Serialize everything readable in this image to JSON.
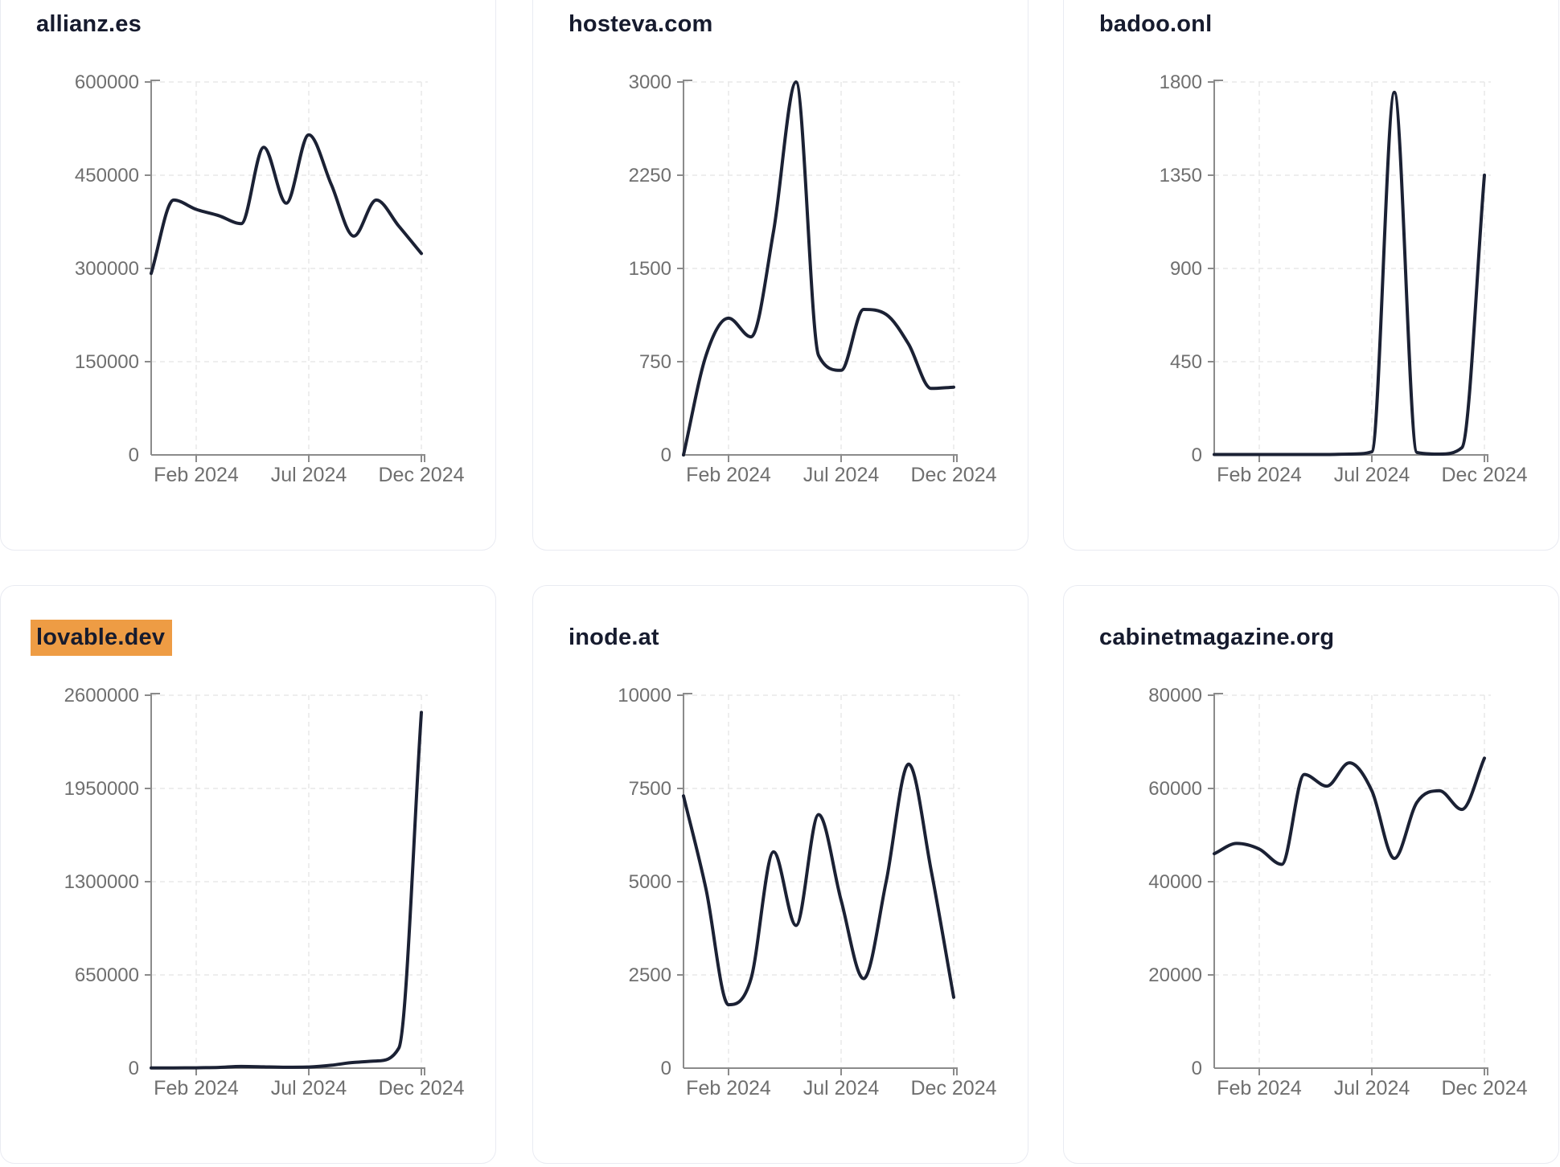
{
  "page": {
    "background": "#ffffff"
  },
  "theme": {
    "line_color": "#1b2134",
    "title_color": "#161b2e",
    "axis_color": "#8b8b8b",
    "tick_label_color": "#6f6f6f",
    "gridline_color": "#e9e9e9",
    "card_border_color": "#e9ebf2",
    "highlight_color": "#ee9c44"
  },
  "x_axis": {
    "tick_labels": [
      "Feb 2024",
      "Jul 2024",
      "Dec 2024"
    ],
    "tick_indices": [
      2,
      7,
      12
    ]
  },
  "chart_data": [
    {
      "type": "line",
      "title": "allianz.es",
      "highlighted": false,
      "x_months": [
        "2023-12",
        "2024-01",
        "2024-02",
        "2024-03",
        "2024-04",
        "2024-05",
        "2024-06",
        "2024-07",
        "2024-08",
        "2024-09",
        "2024-10",
        "2024-11",
        "2024-12"
      ],
      "values": [
        292000,
        410000,
        395000,
        385000,
        372000,
        495000,
        405000,
        515000,
        435000,
        352000,
        410000,
        368000,
        324000
      ],
      "y_ticks": [
        0,
        150000,
        300000,
        450000,
        600000
      ],
      "ylim": [
        0,
        600000
      ],
      "xlabel": "",
      "ylabel": "",
      "grid": true,
      "legend": "none"
    },
    {
      "type": "line",
      "title": "hosteva.com",
      "highlighted": false,
      "x_months": [
        "2023-12",
        "2024-01",
        "2024-02",
        "2024-03",
        "2024-04",
        "2024-05",
        "2024-06",
        "2024-07",
        "2024-08",
        "2024-09",
        "2024-10",
        "2024-11",
        "2024-12"
      ],
      "values": [
        0,
        800,
        1100,
        950,
        1800,
        3000,
        800,
        680,
        1170,
        1130,
        890,
        535,
        545
      ],
      "y_ticks": [
        0,
        750,
        1500,
        2250,
        3000
      ],
      "ylim": [
        0,
        3000
      ],
      "xlabel": "",
      "ylabel": "",
      "grid": true,
      "legend": "none"
    },
    {
      "type": "line",
      "title": "badoo.onl",
      "highlighted": false,
      "x_months": [
        "2023-12",
        "2024-01",
        "2024-02",
        "2024-03",
        "2024-04",
        "2024-05",
        "2024-06",
        "2024-07",
        "2024-08",
        "2024-09",
        "2024-10",
        "2024-11",
        "2024-12"
      ],
      "values": [
        2,
        2,
        2,
        2,
        2,
        2,
        4,
        15,
        1750,
        12,
        4,
        35,
        1350
      ],
      "y_ticks": [
        0,
        450,
        900,
        1350,
        1800
      ],
      "ylim": [
        0,
        1800
      ],
      "xlabel": "",
      "ylabel": "",
      "grid": true,
      "legend": "none"
    },
    {
      "type": "line",
      "title": "lovable.dev",
      "highlighted": true,
      "x_months": [
        "2023-12",
        "2024-01",
        "2024-02",
        "2024-03",
        "2024-04",
        "2024-05",
        "2024-06",
        "2024-07",
        "2024-08",
        "2024-09",
        "2024-10",
        "2024-11",
        "2024-12"
      ],
      "values": [
        1000,
        1500,
        2500,
        5000,
        12000,
        9000,
        6000,
        8000,
        20000,
        40000,
        50000,
        140000,
        2480000
      ],
      "y_ticks": [
        0,
        650000,
        1300000,
        1950000,
        2600000
      ],
      "ylim": [
        0,
        2600000
      ],
      "xlabel": "",
      "ylabel": "",
      "grid": true,
      "legend": "none"
    },
    {
      "type": "line",
      "title": "inode.at",
      "highlighted": false,
      "x_months": [
        "2023-12",
        "2024-01",
        "2024-02",
        "2024-03",
        "2024-04",
        "2024-05",
        "2024-06",
        "2024-07",
        "2024-08",
        "2024-09",
        "2024-10",
        "2024-11",
        "2024-12"
      ],
      "values": [
        7300,
        4800,
        1700,
        2400,
        5800,
        3825,
        6800,
        4500,
        2400,
        5000,
        8150,
        5300,
        1900
      ],
      "y_ticks": [
        0,
        2500,
        5000,
        7500,
        10000
      ],
      "ylim": [
        0,
        10000
      ],
      "xlabel": "",
      "ylabel": "",
      "grid": true,
      "legend": "none"
    },
    {
      "type": "line",
      "title": "cabinetmagazine.org",
      "highlighted": false,
      "x_months": [
        "2023-12",
        "2024-01",
        "2024-02",
        "2024-03",
        "2024-04",
        "2024-05",
        "2024-06",
        "2024-07",
        "2024-08",
        "2024-09",
        "2024-10",
        "2024-11",
        "2024-12"
      ],
      "values": [
        46000,
        48200,
        47000,
        43700,
        63000,
        60500,
        65500,
        59500,
        45000,
        57000,
        59500,
        55500,
        66500
      ],
      "y_ticks": [
        0,
        20000,
        40000,
        60000,
        80000
      ],
      "ylim": [
        0,
        80000
      ],
      "xlabel": "",
      "ylabel": "",
      "grid": true,
      "legend": "none"
    }
  ]
}
